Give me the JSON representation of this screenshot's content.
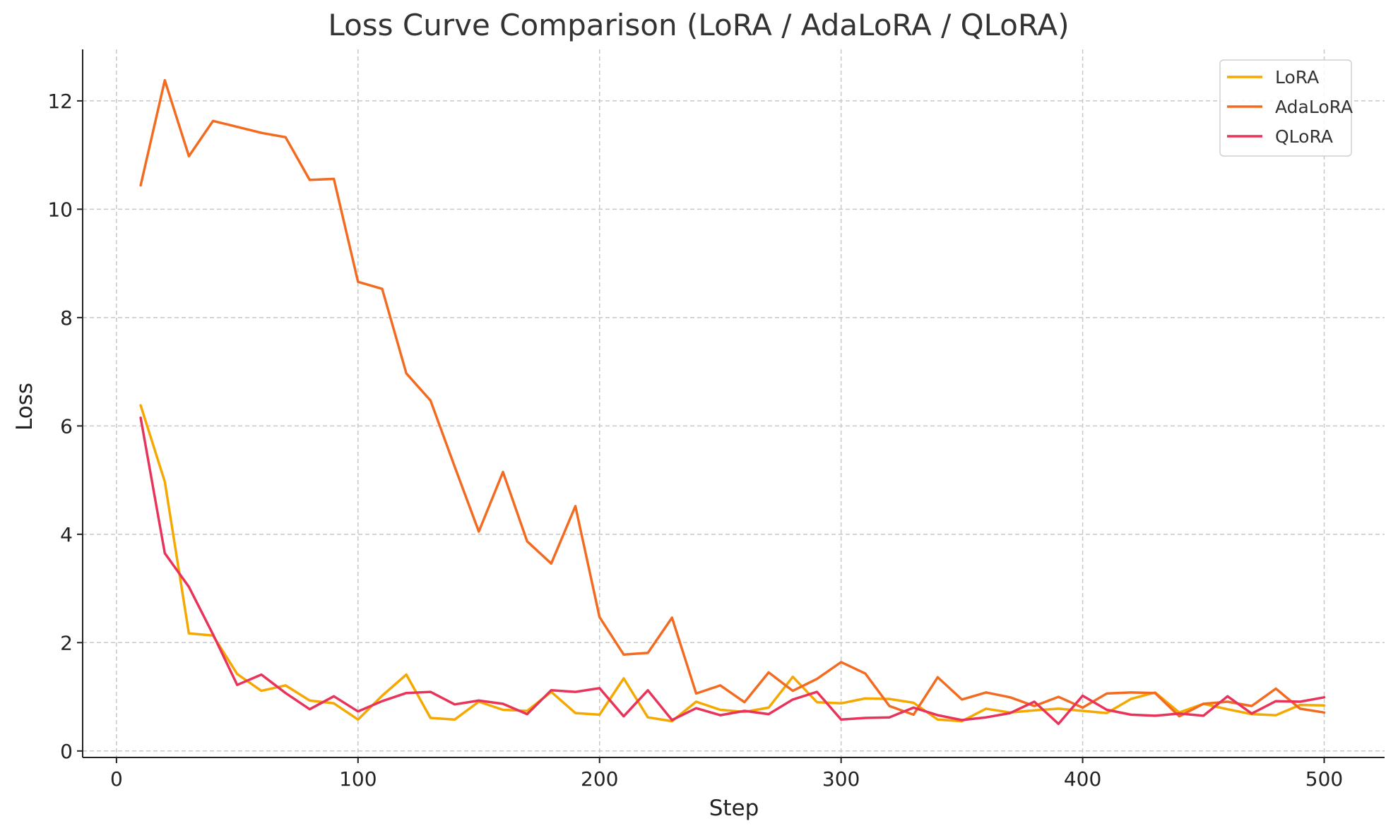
{
  "chart_data": {
    "type": "line",
    "title": "Loss Curve Comparison (LoRA / AdaLoRA / QLoRA)",
    "xlabel": "Step",
    "ylabel": "Loss",
    "xlim": [
      -14,
      525
    ],
    "ylim": [
      -0.12,
      12.95
    ],
    "xticks": [
      0,
      100,
      200,
      300,
      400,
      500
    ],
    "yticks": [
      0,
      2,
      4,
      6,
      8,
      10,
      12
    ],
    "grid": true,
    "legend_position": "top-right",
    "x": [
      10,
      20,
      30,
      40,
      50,
      60,
      70,
      80,
      90,
      100,
      110,
      120,
      130,
      140,
      150,
      160,
      170,
      180,
      190,
      200,
      210,
      220,
      230,
      240,
      250,
      260,
      270,
      280,
      290,
      300,
      310,
      320,
      330,
      340,
      350,
      360,
      370,
      380,
      390,
      400,
      410,
      420,
      430,
      440,
      450,
      460,
      470,
      480,
      490,
      500
    ],
    "series": [
      {
        "name": "LoRA",
        "color": "#f5a800",
        "values": [
          6.38,
          4.97,
          2.17,
          2.13,
          1.42,
          1.11,
          1.21,
          0.93,
          0.88,
          0.58,
          1.02,
          1.41,
          0.61,
          0.58,
          0.91,
          0.76,
          0.74,
          1.09,
          0.7,
          0.67,
          1.34,
          0.62,
          0.55,
          0.91,
          0.76,
          0.72,
          0.8,
          1.37,
          0.9,
          0.88,
          0.97,
          0.96,
          0.89,
          0.58,
          0.55,
          0.78,
          0.71,
          0.75,
          0.78,
          0.74,
          0.7,
          0.96,
          1.08,
          0.71,
          0.87,
          0.77,
          0.68,
          0.66,
          0.85,
          0.84
        ]
      },
      {
        "name": "AdaLoRA",
        "color": "#f26b21",
        "values": [
          10.44,
          12.38,
          10.98,
          11.63,
          11.52,
          11.41,
          11.33,
          10.54,
          10.56,
          8.66,
          8.53,
          6.97,
          6.47,
          5.25,
          4.05,
          5.15,
          3.87,
          3.46,
          4.52,
          2.47,
          1.78,
          1.81,
          2.46,
          1.06,
          1.21,
          0.9,
          1.45,
          1.11,
          1.33,
          1.64,
          1.43,
          0.83,
          0.67,
          1.36,
          0.95,
          1.08,
          0.99,
          0.83,
          1.0,
          0.8,
          1.06,
          1.08,
          1.07,
          0.64,
          0.87,
          0.91,
          0.83,
          1.15,
          0.78,
          0.71
        ]
      },
      {
        "name": "QLoRA",
        "color": "#e8345a",
        "values": [
          6.15,
          3.65,
          3.03,
          2.15,
          1.22,
          1.41,
          1.07,
          0.77,
          1.01,
          0.73,
          0.92,
          1.07,
          1.09,
          0.86,
          0.93,
          0.87,
          0.68,
          1.12,
          1.09,
          1.16,
          0.64,
          1.12,
          0.57,
          0.79,
          0.66,
          0.74,
          0.68,
          0.95,
          1.09,
          0.58,
          0.61,
          0.62,
          0.8,
          0.66,
          0.57,
          0.62,
          0.7,
          0.91,
          0.5,
          1.02,
          0.76,
          0.67,
          0.65,
          0.69,
          0.65,
          1.01,
          0.69,
          0.92,
          0.91,
          0.99
        ]
      }
    ]
  }
}
